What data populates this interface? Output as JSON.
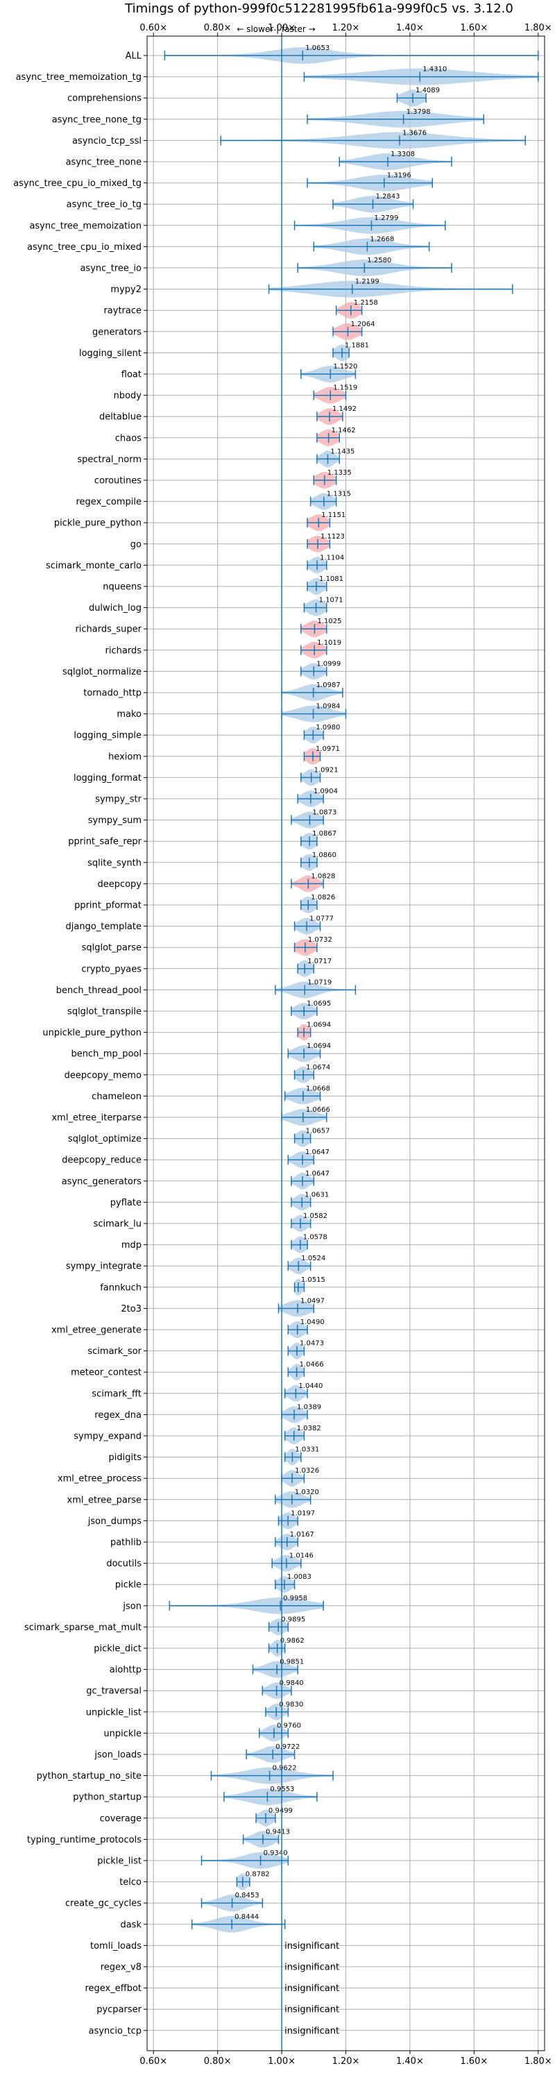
{
  "chart_data": {
    "type": "violin",
    "title": "Timings of python-999f0c512281995fb61a-999f0c5 vs. 3.12.0",
    "subtitle": "← slower | faster →",
    "x_ticks": [
      "0.60×",
      "0.80×",
      "1.00×",
      "1.20×",
      "1.40×",
      "1.60×",
      "1.80×"
    ],
    "x_tick_values": [
      0.6,
      0.8,
      1.0,
      1.2,
      1.4,
      1.6,
      1.8
    ],
    "xlim": [
      0.58,
      1.82
    ],
    "grid": true,
    "insignificant_text": "insignificant",
    "colors": {
      "default": "#a9c9e6",
      "highlight": "#f4a9ad",
      "line": "#1f77b4",
      "axis": "#000000",
      "grid": "#b0b0b0"
    },
    "benchmarks": [
      {
        "name": "ALL",
        "mean": 1.0653,
        "label": "1.0653",
        "min": 0.635,
        "max": 1.8,
        "spread": 0.09,
        "highlight": false
      },
      {
        "name": "async_tree_memoization_tg",
        "mean": 1.431,
        "label": "1.4310",
        "min": 1.07,
        "max": 1.8,
        "spread": 0.16,
        "highlight": false
      },
      {
        "name": "comprehensions",
        "mean": 1.4089,
        "label": "1.4089",
        "min": 1.36,
        "max": 1.45,
        "spread": 0.03,
        "highlight": false
      },
      {
        "name": "async_tree_none_tg",
        "mean": 1.3798,
        "label": "1.3798",
        "min": 1.08,
        "max": 1.63,
        "spread": 0.12,
        "highlight": false
      },
      {
        "name": "asyncio_tcp_ssl",
        "mean": 1.3676,
        "label": "1.3676",
        "min": 0.81,
        "max": 1.76,
        "spread": 0.14,
        "highlight": false
      },
      {
        "name": "async_tree_none",
        "mean": 1.3308,
        "label": "1.3308",
        "min": 1.18,
        "max": 1.53,
        "spread": 0.07,
        "highlight": false
      },
      {
        "name": "async_tree_cpu_io_mixed_tg",
        "mean": 1.3196,
        "label": "1.3196",
        "min": 1.08,
        "max": 1.47,
        "spread": 0.08,
        "highlight": false
      },
      {
        "name": "async_tree_io_tg",
        "mean": 1.2843,
        "label": "1.2843",
        "min": 1.16,
        "max": 1.41,
        "spread": 0.06,
        "highlight": false
      },
      {
        "name": "async_tree_memoization",
        "mean": 1.2799,
        "label": "1.2799",
        "min": 1.04,
        "max": 1.51,
        "spread": 0.08,
        "highlight": false
      },
      {
        "name": "async_tree_cpu_io_mixed",
        "mean": 1.2668,
        "label": "1.2668",
        "min": 1.1,
        "max": 1.46,
        "spread": 0.07,
        "highlight": false
      },
      {
        "name": "async_tree_io",
        "mean": 1.258,
        "label": "1.2580",
        "min": 1.05,
        "max": 1.53,
        "spread": 0.08,
        "highlight": false
      },
      {
        "name": "mypy2",
        "mean": 1.2199,
        "label": "1.2199",
        "min": 0.96,
        "max": 1.72,
        "spread": 0.12,
        "highlight": false
      },
      {
        "name": "raytrace",
        "mean": 1.2158,
        "label": "1.2158",
        "min": 1.17,
        "max": 1.25,
        "spread": 0.025,
        "highlight": true
      },
      {
        "name": "generators",
        "mean": 1.2064,
        "label": "1.2064",
        "min": 1.16,
        "max": 1.25,
        "spread": 0.03,
        "highlight": true
      },
      {
        "name": "logging_silent",
        "mean": 1.1881,
        "label": "1.1881",
        "min": 1.16,
        "max": 1.21,
        "spread": 0.02,
        "highlight": false
      },
      {
        "name": "float",
        "mean": 1.152,
        "label": "1.1520",
        "min": 1.06,
        "max": 1.23,
        "spread": 0.04,
        "highlight": false
      },
      {
        "name": "nbody",
        "mean": 1.1519,
        "label": "1.1519",
        "min": 1.1,
        "max": 1.2,
        "spread": 0.03,
        "highlight": true
      },
      {
        "name": "deltablue",
        "mean": 1.1492,
        "label": "1.1492",
        "min": 1.11,
        "max": 1.19,
        "spread": 0.025,
        "highlight": true
      },
      {
        "name": "chaos",
        "mean": 1.1462,
        "label": "1.1462",
        "min": 1.11,
        "max": 1.18,
        "spread": 0.025,
        "highlight": true
      },
      {
        "name": "spectral_norm",
        "mean": 1.1435,
        "label": "1.1435",
        "min": 1.11,
        "max": 1.18,
        "spread": 0.02,
        "highlight": false
      },
      {
        "name": "coroutines",
        "mean": 1.1335,
        "label": "1.1335",
        "min": 1.1,
        "max": 1.17,
        "spread": 0.025,
        "highlight": true
      },
      {
        "name": "regex_compile",
        "mean": 1.1315,
        "label": "1.1315",
        "min": 1.09,
        "max": 1.17,
        "spread": 0.025,
        "highlight": false
      },
      {
        "name": "pickle_pure_python",
        "mean": 1.1151,
        "label": "1.1151",
        "min": 1.08,
        "max": 1.15,
        "spread": 0.025,
        "highlight": true
      },
      {
        "name": "go",
        "mean": 1.1123,
        "label": "1.1123",
        "min": 1.08,
        "max": 1.15,
        "spread": 0.025,
        "highlight": true
      },
      {
        "name": "scimark_monte_carlo",
        "mean": 1.1104,
        "label": "1.1104",
        "min": 1.08,
        "max": 1.14,
        "spread": 0.02,
        "highlight": false
      },
      {
        "name": "nqueens",
        "mean": 1.1081,
        "label": "1.1081",
        "min": 1.08,
        "max": 1.14,
        "spread": 0.02,
        "highlight": false
      },
      {
        "name": "dulwich_log",
        "mean": 1.1071,
        "label": "1.1071",
        "min": 1.07,
        "max": 1.14,
        "spread": 0.025,
        "highlight": false
      },
      {
        "name": "richards_super",
        "mean": 1.1025,
        "label": "1.1025",
        "min": 1.06,
        "max": 1.14,
        "spread": 0.025,
        "highlight": true
      },
      {
        "name": "richards",
        "mean": 1.1019,
        "label": "1.1019",
        "min": 1.06,
        "max": 1.14,
        "spread": 0.025,
        "highlight": true
      },
      {
        "name": "sqlglot_normalize",
        "mean": 1.0999,
        "label": "1.0999",
        "min": 1.06,
        "max": 1.14,
        "spread": 0.025,
        "highlight": false
      },
      {
        "name": "tornado_http",
        "mean": 1.0987,
        "label": "1.0987",
        "min": 1.0,
        "max": 1.19,
        "spread": 0.04,
        "highlight": false
      },
      {
        "name": "mako",
        "mean": 1.0984,
        "label": "1.0984",
        "min": 1.0,
        "max": 1.2,
        "spread": 0.05,
        "highlight": false
      },
      {
        "name": "logging_simple",
        "mean": 1.098,
        "label": "1.0980",
        "min": 1.07,
        "max": 1.13,
        "spread": 0.02,
        "highlight": false
      },
      {
        "name": "hexiom",
        "mean": 1.0971,
        "label": "1.0971",
        "min": 1.07,
        "max": 1.12,
        "spread": 0.02,
        "highlight": true
      },
      {
        "name": "logging_format",
        "mean": 1.0921,
        "label": "1.0921",
        "min": 1.06,
        "max": 1.12,
        "spread": 0.02,
        "highlight": false
      },
      {
        "name": "sympy_str",
        "mean": 1.0904,
        "label": "1.0904",
        "min": 1.05,
        "max": 1.13,
        "spread": 0.025,
        "highlight": false
      },
      {
        "name": "sympy_sum",
        "mean": 1.0873,
        "label": "1.0873",
        "min": 1.03,
        "max": 1.13,
        "spread": 0.03,
        "highlight": false
      },
      {
        "name": "pprint_safe_repr",
        "mean": 1.0867,
        "label": "1.0867",
        "min": 1.06,
        "max": 1.11,
        "spread": 0.02,
        "highlight": false
      },
      {
        "name": "sqlite_synth",
        "mean": 1.086,
        "label": "1.0860",
        "min": 1.06,
        "max": 1.11,
        "spread": 0.02,
        "highlight": false
      },
      {
        "name": "deepcopy",
        "mean": 1.0828,
        "label": "1.0828",
        "min": 1.03,
        "max": 1.13,
        "spread": 0.025,
        "highlight": true
      },
      {
        "name": "pprint_pformat",
        "mean": 1.0826,
        "label": "1.0826",
        "min": 1.06,
        "max": 1.11,
        "spread": 0.02,
        "highlight": false
      },
      {
        "name": "django_template",
        "mean": 1.0777,
        "label": "1.0777",
        "min": 1.04,
        "max": 1.12,
        "spread": 0.025,
        "highlight": false
      },
      {
        "name": "sqlglot_parse",
        "mean": 1.0732,
        "label": "1.0732",
        "min": 1.04,
        "max": 1.11,
        "spread": 0.025,
        "highlight": true
      },
      {
        "name": "crypto_pyaes",
        "mean": 1.0717,
        "label": "1.0717",
        "min": 1.05,
        "max": 1.1,
        "spread": 0.02,
        "highlight": false
      },
      {
        "name": "bench_thread_pool",
        "mean": 1.0719,
        "label": "1.0719",
        "min": 0.98,
        "max": 1.23,
        "spread": 0.04,
        "highlight": false
      },
      {
        "name": "sqlglot_transpile",
        "mean": 1.0695,
        "label": "1.0695",
        "min": 1.03,
        "max": 1.11,
        "spread": 0.025,
        "highlight": false
      },
      {
        "name": "unpickle_pure_python",
        "mean": 1.0694,
        "label": "1.0694",
        "min": 1.05,
        "max": 1.09,
        "spread": 0.015,
        "highlight": true
      },
      {
        "name": "bench_mp_pool",
        "mean": 1.0694,
        "label": "1.0694",
        "min": 1.02,
        "max": 1.12,
        "spread": 0.03,
        "highlight": false
      },
      {
        "name": "deepcopy_memo",
        "mean": 1.0674,
        "label": "1.0674",
        "min": 1.04,
        "max": 1.1,
        "spread": 0.02,
        "highlight": false
      },
      {
        "name": "chameleon",
        "mean": 1.0668,
        "label": "1.0668",
        "min": 1.01,
        "max": 1.12,
        "spread": 0.035,
        "highlight": false
      },
      {
        "name": "xml_etree_iterparse",
        "mean": 1.0666,
        "label": "1.0666",
        "min": 1.0,
        "max": 1.14,
        "spread": 0.04,
        "highlight": false
      },
      {
        "name": "sqlglot_optimize",
        "mean": 1.0657,
        "label": "1.0657",
        "min": 1.04,
        "max": 1.09,
        "spread": 0.02,
        "highlight": false
      },
      {
        "name": "deepcopy_reduce",
        "mean": 1.0647,
        "label": "1.0647",
        "min": 1.02,
        "max": 1.1,
        "spread": 0.025,
        "highlight": false
      },
      {
        "name": "async_generators",
        "mean": 1.0647,
        "label": "1.0647",
        "min": 1.03,
        "max": 1.1,
        "spread": 0.02,
        "highlight": false
      },
      {
        "name": "pyflate",
        "mean": 1.0631,
        "label": "1.0631",
        "min": 1.03,
        "max": 1.09,
        "spread": 0.02,
        "highlight": false
      },
      {
        "name": "scimark_lu",
        "mean": 1.0582,
        "label": "1.0582",
        "min": 1.03,
        "max": 1.09,
        "spread": 0.02,
        "highlight": false
      },
      {
        "name": "mdp",
        "mean": 1.0578,
        "label": "1.0578",
        "min": 1.03,
        "max": 1.08,
        "spread": 0.018,
        "highlight": false
      },
      {
        "name": "sympy_integrate",
        "mean": 1.0524,
        "label": "1.0524",
        "min": 1.02,
        "max": 1.09,
        "spread": 0.02,
        "highlight": false
      },
      {
        "name": "fannkuch",
        "mean": 1.0515,
        "label": "1.0515",
        "min": 1.04,
        "max": 1.07,
        "spread": 0.012,
        "highlight": false
      },
      {
        "name": "2to3",
        "mean": 1.0497,
        "label": "1.0497",
        "min": 0.99,
        "max": 1.1,
        "spread": 0.035,
        "highlight": false
      },
      {
        "name": "xml_etree_generate",
        "mean": 1.049,
        "label": "1.0490",
        "min": 1.02,
        "max": 1.08,
        "spread": 0.02,
        "highlight": false
      },
      {
        "name": "scimark_sor",
        "mean": 1.0473,
        "label": "1.0473",
        "min": 1.02,
        "max": 1.07,
        "spread": 0.015,
        "highlight": false
      },
      {
        "name": "meteor_contest",
        "mean": 1.0466,
        "label": "1.0466",
        "min": 1.02,
        "max": 1.07,
        "spread": 0.015,
        "highlight": false
      },
      {
        "name": "scimark_fft",
        "mean": 1.044,
        "label": "1.0440",
        "min": 1.01,
        "max": 1.08,
        "spread": 0.02,
        "highlight": false
      },
      {
        "name": "regex_dna",
        "mean": 1.0389,
        "label": "1.0389",
        "min": 1.0,
        "max": 1.08,
        "spread": 0.025,
        "highlight": false
      },
      {
        "name": "sympy_expand",
        "mean": 1.0382,
        "label": "1.0382",
        "min": 1.01,
        "max": 1.07,
        "spread": 0.02,
        "highlight": false
      },
      {
        "name": "pidigits",
        "mean": 1.0331,
        "label": "1.0331",
        "min": 1.01,
        "max": 1.06,
        "spread": 0.015,
        "highlight": false
      },
      {
        "name": "xml_etree_process",
        "mean": 1.0326,
        "label": "1.0326",
        "min": 1.0,
        "max": 1.07,
        "spread": 0.02,
        "highlight": false
      },
      {
        "name": "xml_etree_parse",
        "mean": 1.032,
        "label": "1.0320",
        "min": 0.98,
        "max": 1.09,
        "spread": 0.03,
        "highlight": false
      },
      {
        "name": "json_dumps",
        "mean": 1.0197,
        "label": "1.0197",
        "min": 0.99,
        "max": 1.05,
        "spread": 0.02,
        "highlight": false
      },
      {
        "name": "pathlib",
        "mean": 1.0167,
        "label": "1.0167",
        "min": 0.98,
        "max": 1.05,
        "spread": 0.02,
        "highlight": false
      },
      {
        "name": "docutils",
        "mean": 1.0146,
        "label": "1.0146",
        "min": 0.97,
        "max": 1.06,
        "spread": 0.025,
        "highlight": false
      },
      {
        "name": "pickle",
        "mean": 1.0083,
        "label": "1.0083",
        "min": 0.98,
        "max": 1.04,
        "spread": 0.02,
        "highlight": false
      },
      {
        "name": "json",
        "mean": 0.9958,
        "label": "0.9958",
        "min": 0.65,
        "max": 1.13,
        "spread": 0.08,
        "highlight": false
      },
      {
        "name": "scimark_sparse_mat_mult",
        "mean": 0.9895,
        "label": "0.9895",
        "min": 0.96,
        "max": 1.02,
        "spread": 0.02,
        "highlight": false
      },
      {
        "name": "pickle_dict",
        "mean": 0.9862,
        "label": "0.9862",
        "min": 0.96,
        "max": 1.01,
        "spread": 0.015,
        "highlight": false
      },
      {
        "name": "aiohttp",
        "mean": 0.9851,
        "label": "0.9851",
        "min": 0.91,
        "max": 1.05,
        "spread": 0.035,
        "highlight": false
      },
      {
        "name": "gc_traversal",
        "mean": 0.984,
        "label": "0.9840",
        "min": 0.94,
        "max": 1.03,
        "spread": 0.025,
        "highlight": false
      },
      {
        "name": "unpickle_list",
        "mean": 0.983,
        "label": "0.9830",
        "min": 0.95,
        "max": 1.02,
        "spread": 0.02,
        "highlight": false
      },
      {
        "name": "unpickle",
        "mean": 0.976,
        "label": "0.9760",
        "min": 0.93,
        "max": 1.02,
        "spread": 0.025,
        "highlight": false
      },
      {
        "name": "json_loads",
        "mean": 0.9722,
        "label": "0.9722",
        "min": 0.89,
        "max": 1.04,
        "spread": 0.035,
        "highlight": false
      },
      {
        "name": "python_startup_no_site",
        "mean": 0.9622,
        "label": "0.9622",
        "min": 0.78,
        "max": 1.16,
        "spread": 0.07,
        "highlight": false
      },
      {
        "name": "python_startup",
        "mean": 0.9553,
        "label": "0.9553",
        "min": 0.82,
        "max": 1.11,
        "spread": 0.06,
        "highlight": false
      },
      {
        "name": "coverage",
        "mean": 0.9499,
        "label": "0.9499",
        "min": 0.92,
        "max": 0.98,
        "spread": 0.02,
        "highlight": false
      },
      {
        "name": "typing_runtime_protocols",
        "mean": 0.9413,
        "label": "0.9413",
        "min": 0.88,
        "max": 0.99,
        "spread": 0.03,
        "highlight": false
      },
      {
        "name": "pickle_list",
        "mean": 0.934,
        "label": "0.9340",
        "min": 0.75,
        "max": 1.02,
        "spread": 0.05,
        "highlight": false
      },
      {
        "name": "telco",
        "mean": 0.8782,
        "label": "0.8782",
        "min": 0.86,
        "max": 0.9,
        "spread": 0.015,
        "highlight": false
      },
      {
        "name": "create_gc_cycles",
        "mean": 0.8453,
        "label": "0.8453",
        "min": 0.75,
        "max": 0.94,
        "spread": 0.04,
        "highlight": false
      },
      {
        "name": "dask",
        "mean": 0.8444,
        "label": "0.8444",
        "min": 0.72,
        "max": 1.01,
        "spread": 0.05,
        "highlight": false
      },
      {
        "name": "tomli_loads",
        "mean": null,
        "label": "",
        "insignificant": true
      },
      {
        "name": "regex_v8",
        "mean": null,
        "label": "",
        "insignificant": true
      },
      {
        "name": "regex_effbot",
        "mean": null,
        "label": "",
        "insignificant": true
      },
      {
        "name": "pycparser",
        "mean": null,
        "label": "",
        "insignificant": true
      },
      {
        "name": "asyncio_tcp",
        "mean": null,
        "label": "",
        "insignificant": true
      }
    ]
  }
}
